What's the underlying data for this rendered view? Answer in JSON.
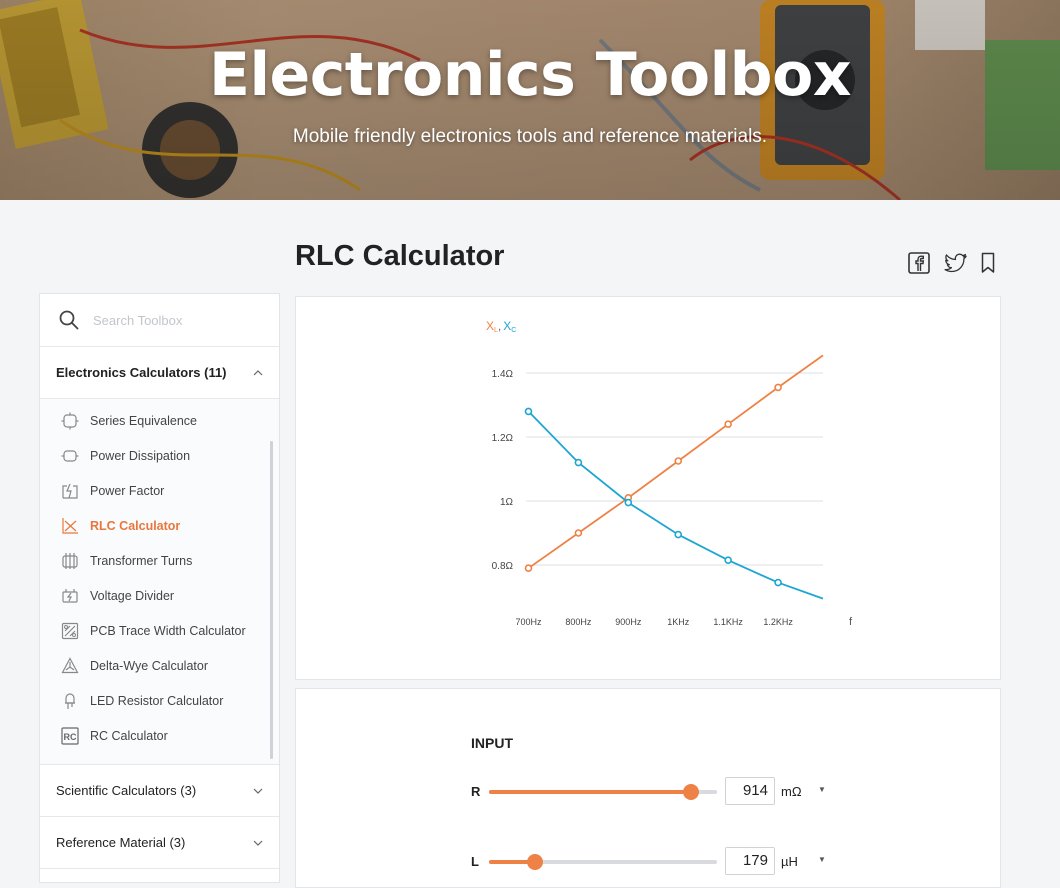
{
  "hero": {
    "title": "Electronics Toolbox",
    "subtitle": "Mobile friendly electronics tools and reference materials."
  },
  "page": {
    "title": "RLC Calculator"
  },
  "share": {
    "icons": [
      "facebook-icon",
      "twitter-icon",
      "bookmark-icon"
    ]
  },
  "sidebar": {
    "search_placeholder": "Search Toolbox",
    "categories": [
      {
        "label": "Electronics Calculators (11)",
        "expanded": true,
        "items": [
          {
            "label": "Series Equivalence",
            "icon": "series-equivalence-icon",
            "active": false
          },
          {
            "label": "Power Dissipation",
            "icon": "power-dissipation-icon",
            "active": false
          },
          {
            "label": "Power Factor",
            "icon": "power-factor-icon",
            "active": false
          },
          {
            "label": "RLC Calculator",
            "icon": "rlc-calculator-icon",
            "active": true
          },
          {
            "label": "Transformer Turns",
            "icon": "transformer-icon",
            "active": false
          },
          {
            "label": "Voltage Divider",
            "icon": "voltage-divider-icon",
            "active": false
          },
          {
            "label": "PCB Trace Width Calculator",
            "icon": "pcb-trace-icon",
            "active": false
          },
          {
            "label": "Delta-Wye Calculator",
            "icon": "delta-wye-icon",
            "active": false
          },
          {
            "label": "LED Resistor Calculator",
            "icon": "led-icon",
            "active": false
          },
          {
            "label": "RC Calculator",
            "icon": "rc-icon",
            "active": false
          }
        ]
      },
      {
        "label": "Scientific Calculators (3)",
        "expanded": false
      },
      {
        "label": "Reference Material (3)",
        "expanded": false
      }
    ]
  },
  "chart_data": {
    "type": "line",
    "y_axis_label": {
      "main": "X",
      "sub_l": "L",
      "sep": ",",
      "main2": "X",
      "sub_c": "C"
    },
    "x_axis_label": "f",
    "x_ticks": [
      "700Hz",
      "800Hz",
      "900Hz",
      "1KHz",
      "1.1KHz",
      "1.2KHz"
    ],
    "x_range_hz": [
      675,
      1290
    ],
    "y_ticks": [
      {
        "value": 0.8,
        "label": "0.8Ω"
      },
      {
        "value": 1.0,
        "label": "1Ω"
      },
      {
        "value": 1.2,
        "label": "1.2Ω"
      },
      {
        "value": 1.4,
        "label": "1.4Ω"
      }
    ],
    "y_range": [
      0.7,
      1.45
    ],
    "grid": true,
    "series": [
      {
        "key": "XL",
        "color": "#ee8246",
        "x": [
          700,
          800,
          900,
          1000,
          1100,
          1200,
          1290
        ],
        "y": [
          0.79,
          0.9,
          1.01,
          1.125,
          1.24,
          1.355,
          1.455
        ],
        "markers": [
          true,
          true,
          true,
          true,
          true,
          true,
          false
        ]
      },
      {
        "key": "XC",
        "color": "#1ea6d3",
        "x": [
          700,
          800,
          900,
          1000,
          1100,
          1200,
          1290
        ],
        "y": [
          1.28,
          1.12,
          0.995,
          0.895,
          0.815,
          0.745,
          0.695
        ],
        "markers": [
          true,
          true,
          true,
          true,
          true,
          true,
          false
        ]
      }
    ]
  },
  "input": {
    "title": "INPUT",
    "rows": [
      {
        "var": "R",
        "value": "914",
        "unit": "mΩ",
        "level": 0.885
      },
      {
        "var": "L",
        "value": "179",
        "unit": "µH",
        "level": 0.2
      }
    ]
  }
}
